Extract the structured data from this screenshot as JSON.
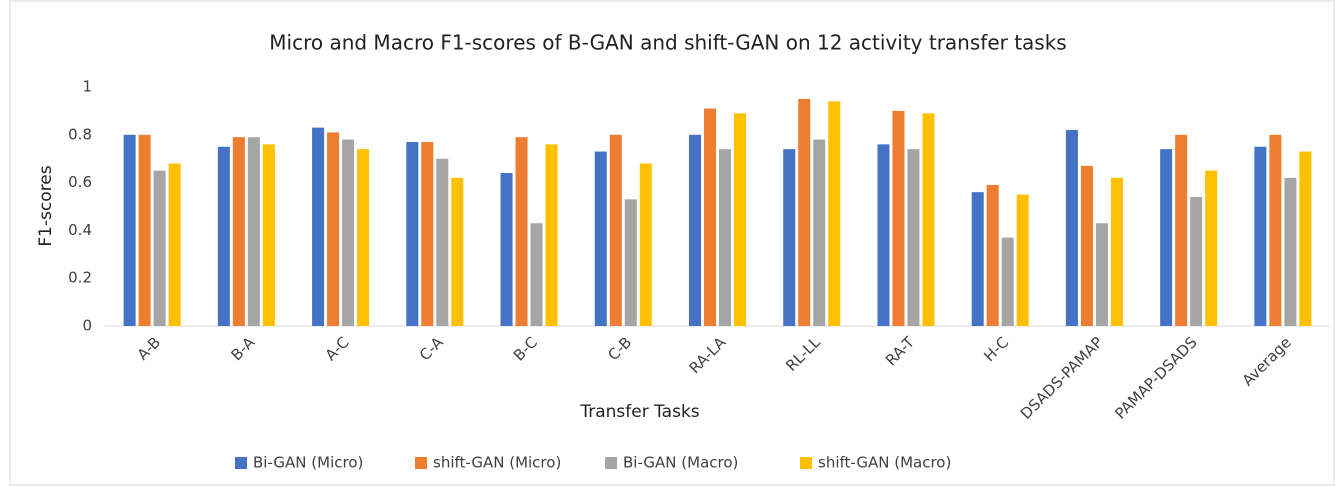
{
  "chart_data": {
    "type": "bar",
    "title": "Micro and Macro F1-scores of B-GAN and shift-GAN on 12 activity transfer tasks",
    "x_label": "Transfer Tasks",
    "y_label": "F1-scores",
    "categories": [
      "A-B",
      "B-A",
      "A-C",
      "C-A",
      "B-C",
      "C-B",
      "RA-LA",
      "RL-LL",
      "RA-T",
      "H-C",
      "DSADS-PAMAP",
      "PAMAP-DSADS",
      "Average"
    ],
    "series": [
      {
        "name": "Bi-GAN (Micro)",
        "color": "#4472c4",
        "values": [
          0.8,
          0.75,
          0.83,
          0.77,
          0.64,
          0.73,
          0.8,
          0.74,
          0.76,
          0.56,
          0.82,
          0.74,
          0.75
        ]
      },
      {
        "name": "shift-GAN (Micro)",
        "color": "#ed7d31",
        "values": [
          0.8,
          0.79,
          0.81,
          0.77,
          0.79,
          0.8,
          0.91,
          0.95,
          0.9,
          0.59,
          0.67,
          0.8,
          0.8
        ]
      },
      {
        "name": "Bi-GAN (Macro)",
        "color": "#a5a5a5",
        "values": [
          0.65,
          0.79,
          0.78,
          0.7,
          0.43,
          0.53,
          0.74,
          0.78,
          0.74,
          0.37,
          0.43,
          0.54,
          0.62
        ]
      },
      {
        "name": "shift-GAN (Macro)",
        "color": "#ffc000",
        "values": [
          0.68,
          0.76,
          0.74,
          0.62,
          0.76,
          0.68,
          0.89,
          0.94,
          0.89,
          0.55,
          0.62,
          0.65,
          0.73
        ]
      }
    ],
    "ylim": [
      0,
      1
    ],
    "yticks": [
      0,
      0.2,
      0.4,
      0.6,
      0.8,
      1
    ],
    "grid": false,
    "legend": "bottom"
  }
}
